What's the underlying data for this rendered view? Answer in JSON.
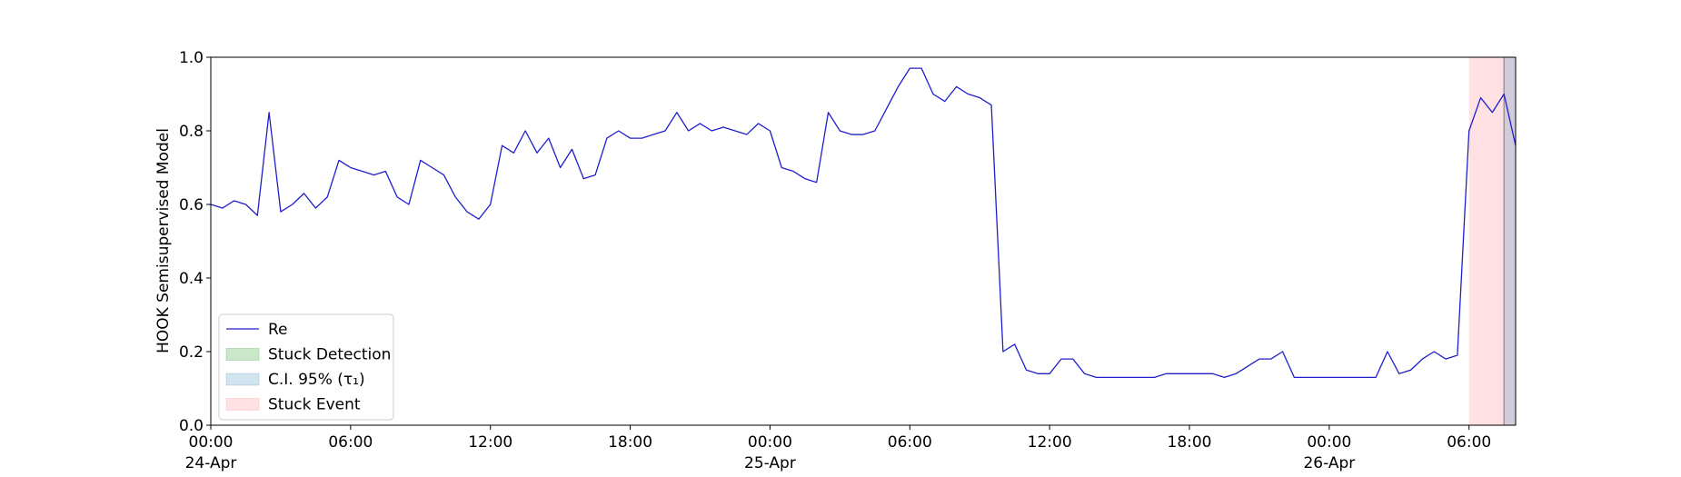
{
  "chart_data": {
    "type": "line",
    "ylabel": "HOOK Semisupervised Model",
    "x": [
      "1900-04-24 00:00",
      "1900-04-24 00:30",
      "1900-04-24 01:00",
      "1900-04-24 01:30",
      "1900-04-24 02:00",
      "1900-04-24 02:30",
      "1900-04-24 03:00",
      "1900-04-24 03:30",
      "1900-04-24 04:00",
      "1900-04-24 04:30",
      "1900-04-24 05:00",
      "1900-04-24 05:30",
      "1900-04-24 06:00",
      "1900-04-24 06:30",
      "1900-04-24 07:00",
      "1900-04-24 07:30",
      "1900-04-24 08:00",
      "1900-04-24 08:30",
      "1900-04-24 09:00",
      "1900-04-24 09:30",
      "1900-04-24 10:00",
      "1900-04-24 10:30",
      "1900-04-24 11:00",
      "1900-04-24 11:30",
      "1900-04-24 12:00",
      "1900-04-24 12:30",
      "1900-04-24 13:00",
      "1900-04-24 13:30",
      "1900-04-24 14:00",
      "1900-04-24 14:30",
      "1900-04-24 15:00",
      "1900-04-24 15:30",
      "1900-04-24 16:00",
      "1900-04-24 16:30",
      "1900-04-24 17:00",
      "1900-04-24 17:30",
      "1900-04-24 18:00",
      "1900-04-24 18:30",
      "1900-04-24 19:00",
      "1900-04-24 19:30",
      "1900-04-24 20:00",
      "1900-04-24 20:30",
      "1900-04-24 21:00",
      "1900-04-24 21:30",
      "1900-04-24 22:00",
      "1900-04-24 22:30",
      "1900-04-24 23:00",
      "1900-04-24 23:30",
      "1900-04-25 00:00",
      "1900-04-25 00:30",
      "1900-04-25 01:00",
      "1900-04-25 01:30",
      "1900-04-25 02:00",
      "1900-04-25 02:30",
      "1900-04-25 03:00",
      "1900-04-25 03:30",
      "1900-04-25 04:00",
      "1900-04-25 04:30",
      "1900-04-25 05:00",
      "1900-04-25 05:30",
      "1900-04-25 06:00",
      "1900-04-25 06:30",
      "1900-04-25 07:00",
      "1900-04-25 07:30",
      "1900-04-25 08:00",
      "1900-04-25 08:30",
      "1900-04-25 09:00",
      "1900-04-25 09:30",
      "1900-04-25 10:00",
      "1900-04-25 10:30",
      "1900-04-25 11:00",
      "1900-04-25 11:30",
      "1900-04-25 12:00",
      "1900-04-25 12:30",
      "1900-04-25 13:00",
      "1900-04-25 13:30",
      "1900-04-25 14:00",
      "1900-04-25 14:30",
      "1900-04-25 15:00",
      "1900-04-25 15:30",
      "1900-04-25 16:00",
      "1900-04-25 16:30",
      "1900-04-25 17:00",
      "1900-04-25 17:30",
      "1900-04-25 18:00",
      "1900-04-25 18:30",
      "1900-04-25 19:00",
      "1900-04-25 19:30",
      "1900-04-25 20:00",
      "1900-04-25 20:30",
      "1900-04-25 21:00",
      "1900-04-25 21:30",
      "1900-04-25 22:00",
      "1900-04-25 22:30",
      "1900-04-25 23:00",
      "1900-04-25 23:30",
      "1900-04-26 00:00",
      "1900-04-26 00:30",
      "1900-04-26 01:00",
      "1900-04-26 01:30",
      "1900-04-26 02:00",
      "1900-04-26 02:30",
      "1900-04-26 03:00",
      "1900-04-26 03:30",
      "1900-04-26 04:00",
      "1900-04-26 04:30",
      "1900-04-26 05:00",
      "1900-04-26 05:30",
      "1900-04-26 06:00",
      "1900-04-26 06:30",
      "1900-04-26 07:00",
      "1900-04-26 07:30",
      "1900-04-26 08:00"
    ],
    "series": [
      {
        "name": "Re",
        "color": "#1f1fcc",
        "values": [
          0.6,
          0.59,
          0.61,
          0.6,
          0.57,
          0.85,
          0.58,
          0.6,
          0.63,
          0.59,
          0.62,
          0.72,
          0.7,
          0.69,
          0.68,
          0.69,
          0.62,
          0.6,
          0.72,
          0.7,
          0.68,
          0.62,
          0.58,
          0.56,
          0.6,
          0.76,
          0.74,
          0.8,
          0.74,
          0.78,
          0.7,
          0.75,
          0.67,
          0.68,
          0.78,
          0.8,
          0.78,
          0.78,
          0.79,
          0.8,
          0.85,
          0.8,
          0.82,
          0.8,
          0.81,
          0.8,
          0.79,
          0.82,
          0.8,
          0.7,
          0.69,
          0.67,
          0.66,
          0.85,
          0.8,
          0.79,
          0.79,
          0.8,
          0.86,
          0.92,
          0.97,
          0.97,
          0.9,
          0.88,
          0.92,
          0.9,
          0.89,
          0.87,
          0.2,
          0.22,
          0.15,
          0.14,
          0.14,
          0.18,
          0.18,
          0.14,
          0.13,
          0.13,
          0.13,
          0.13,
          0.13,
          0.13,
          0.14,
          0.14,
          0.14,
          0.14,
          0.14,
          0.13,
          0.14,
          0.16,
          0.18,
          0.18,
          0.2,
          0.13,
          0.13,
          0.13,
          0.13,
          0.13,
          0.13,
          0.13,
          0.13,
          0.2,
          0.14,
          0.15,
          0.18,
          0.2,
          0.18,
          0.19,
          0.8,
          0.89,
          0.85,
          0.9,
          0.76
        ]
      }
    ],
    "spans": [
      {
        "name": "Stuck Detection",
        "color": "rgba(44,160,44,0.25)",
        "edge": "#888888",
        "start": "1900-04-26 07:30",
        "end": "1900-04-26 07:30"
      },
      {
        "name": "C.I. 95% (τ₁)",
        "color": "rgba(31,119,180,0.2)",
        "start": "1900-04-26 07:30",
        "end": "1900-04-26 08:00"
      },
      {
        "name": "Stuck Event",
        "color": "rgba(255,105,120,0.2)",
        "start": "1900-04-26 06:00",
        "end": "1900-04-26 08:00"
      }
    ],
    "xlim": [
      "1900-04-24 00:00",
      "1900-04-26 08:00"
    ],
    "xticks": [
      {
        "value": "1900-04-24 00:00",
        "label": "00:00\n24-Apr\n1900"
      },
      {
        "value": "1900-04-24 06:00",
        "label": "06:00"
      },
      {
        "value": "1900-04-24 12:00",
        "label": "12:00"
      },
      {
        "value": "1900-04-24 18:00",
        "label": "18:00"
      },
      {
        "value": "1900-04-25 00:00",
        "label": "00:00\n25-Apr"
      },
      {
        "value": "1900-04-25 06:00",
        "label": "06:00"
      },
      {
        "value": "1900-04-25 12:00",
        "label": "12:00"
      },
      {
        "value": "1900-04-25 18:00",
        "label": "18:00"
      },
      {
        "value": "1900-04-26 00:00",
        "label": "00:00\n26-Apr"
      },
      {
        "value": "1900-04-26 06:00",
        "label": "06:00"
      }
    ],
    "ylim": [
      0,
      1
    ],
    "yticks": [
      {
        "value": 0,
        "label": "0.0"
      },
      {
        "value": 0.2,
        "label": "0.2"
      },
      {
        "value": 0.4,
        "label": "0.4"
      },
      {
        "value": 0.6,
        "label": "0.6"
      },
      {
        "value": 0.8,
        "label": "0.8"
      },
      {
        "value": 1,
        "label": "1.0"
      }
    ],
    "legend": "lower left"
  }
}
